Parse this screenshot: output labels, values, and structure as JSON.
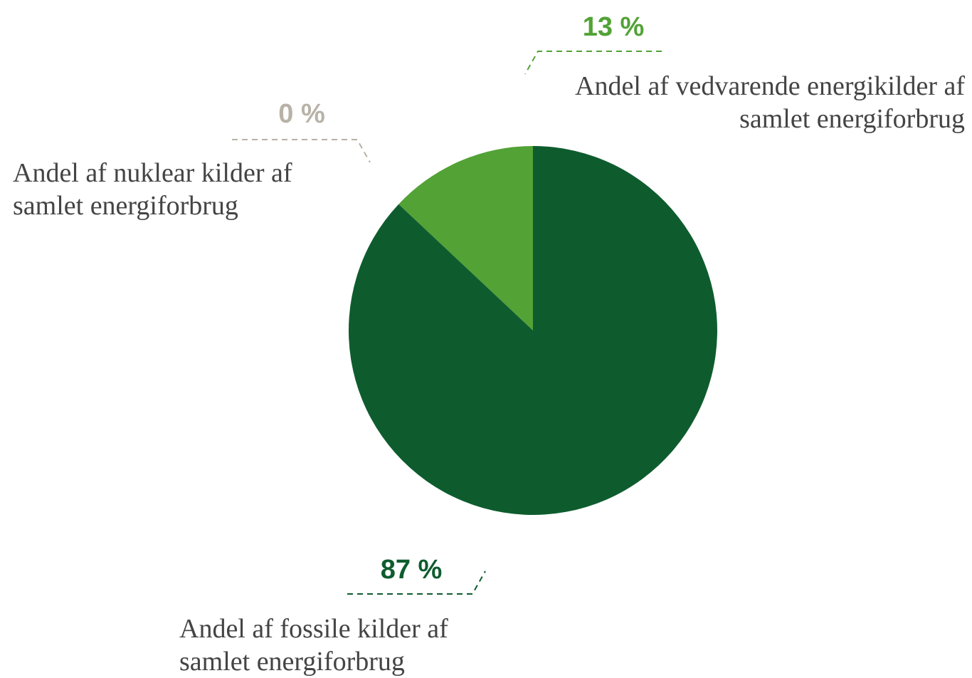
{
  "chart_data": {
    "type": "pie",
    "categories": [
      "Andel af vedvarende energikilder af samlet energiforbrug",
      "Andel af nuklear kilder af samlet energiforbrug",
      "Andel af fossile kilder af samlet energiforbrug"
    ],
    "values": [
      13,
      0,
      87
    ],
    "value_labels": [
      "13 %",
      "0 %",
      "87 %"
    ],
    "colors": [
      "#52a236",
      "#b8b2a7",
      "#0e5c2e"
    ]
  }
}
